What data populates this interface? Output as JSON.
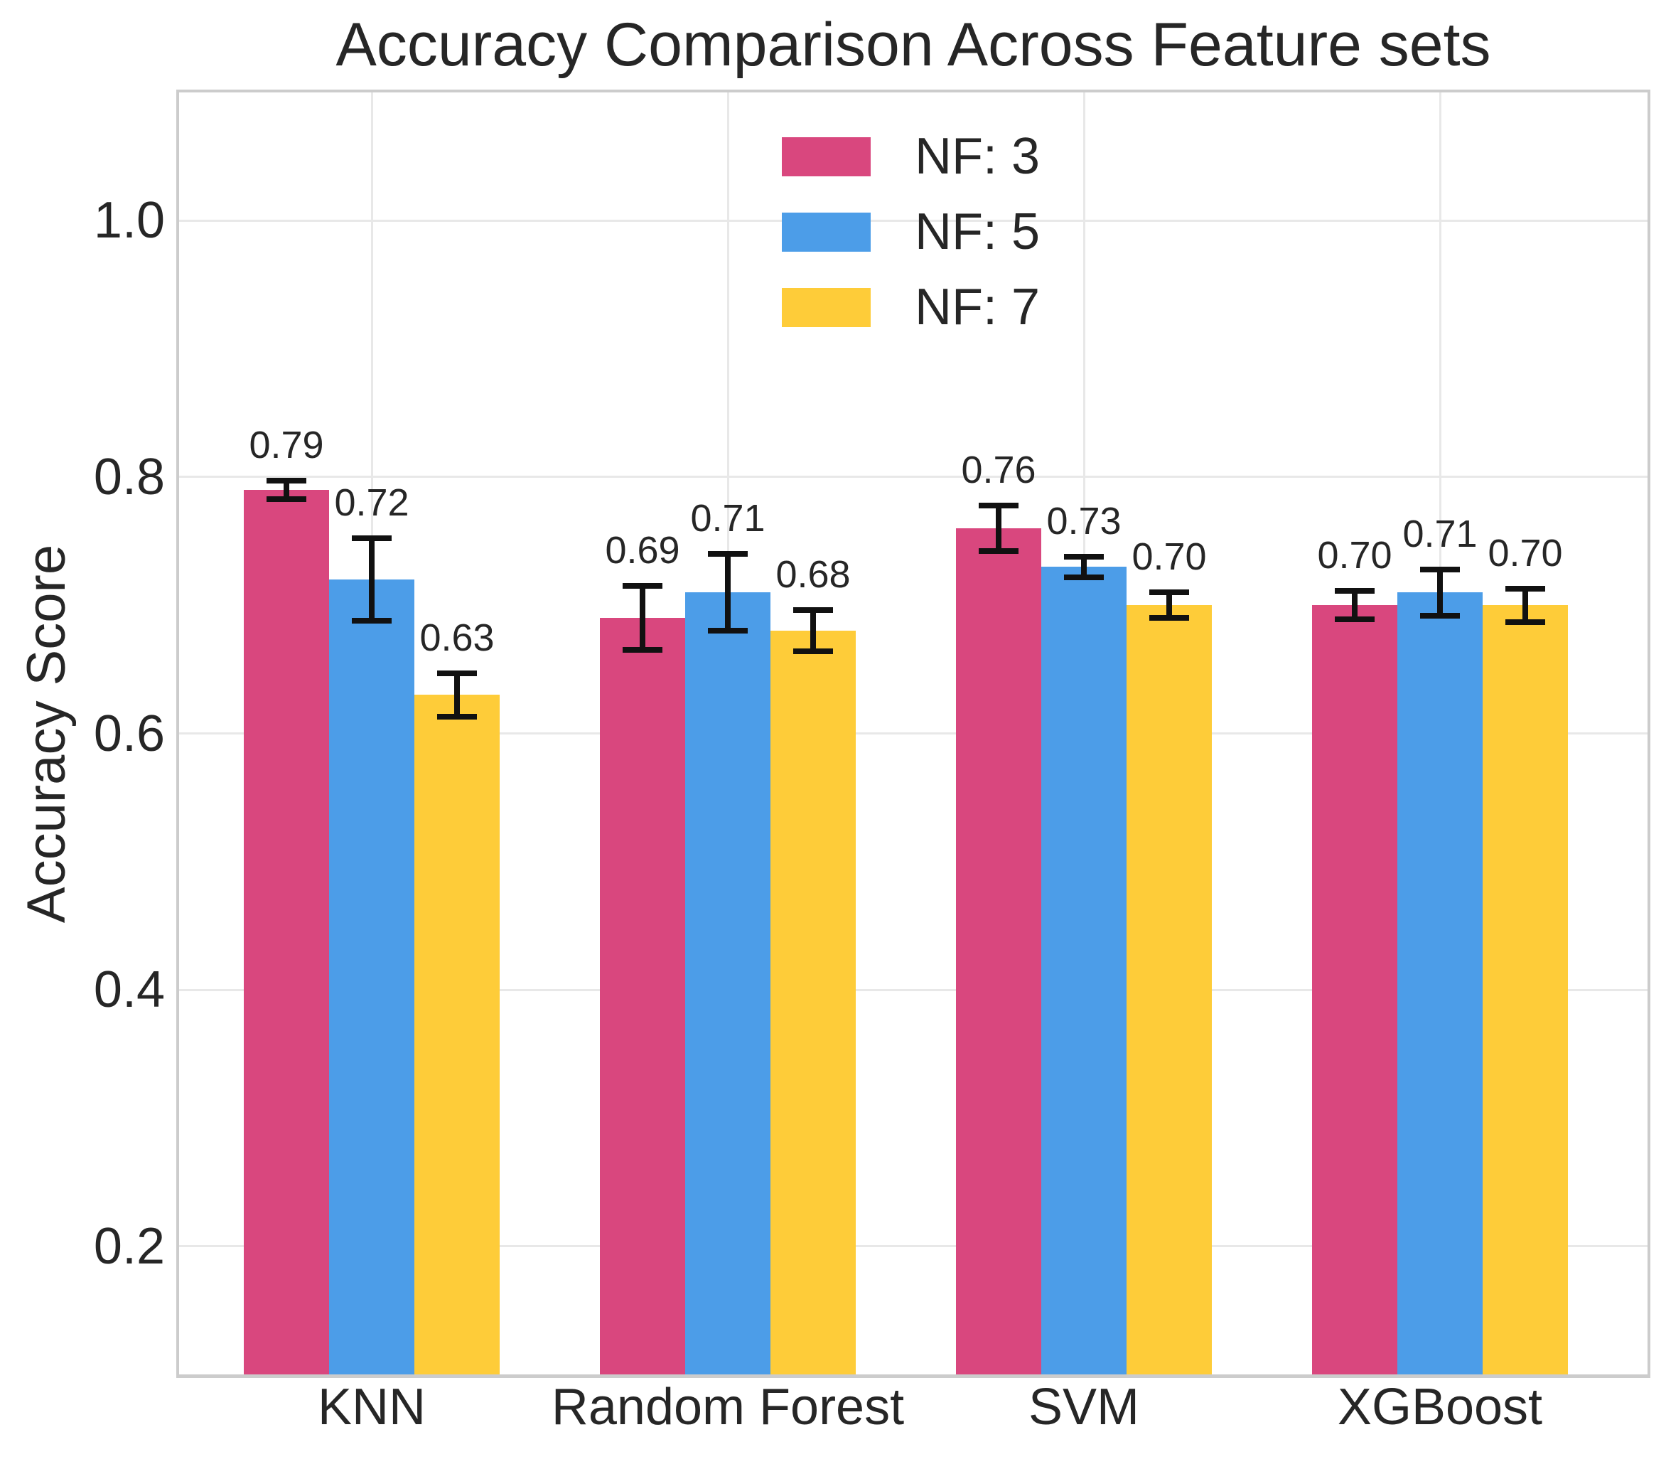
{
  "chart_data": {
    "type": "bar",
    "title": "Accuracy Comparison Across Feature sets",
    "xlabel": "",
    "ylabel": "Accuracy Score",
    "categories": [
      "KNN",
      "Random Forest",
      "SVM",
      "XGBoost"
    ],
    "series": [
      {
        "name": "NF: 3",
        "color": "#D9477E",
        "values": [
          0.79,
          0.69,
          0.76,
          0.7
        ],
        "errors": [
          0.007,
          0.025,
          0.018,
          0.011
        ],
        "labels": [
          "0.79",
          "0.69",
          "0.76",
          "0.70"
        ]
      },
      {
        "name": "NF: 5",
        "color": "#4C9DE8",
        "values": [
          0.72,
          0.71,
          0.73,
          0.71
        ],
        "errors": [
          0.032,
          0.03,
          0.008,
          0.018
        ],
        "labels": [
          "0.72",
          "0.71",
          "0.73",
          "0.71"
        ]
      },
      {
        "name": "NF: 7",
        "color": "#FECC39",
        "values": [
          0.63,
          0.68,
          0.7,
          0.7
        ],
        "errors": [
          0.017,
          0.016,
          0.01,
          0.013
        ],
        "labels": [
          "0.63",
          "0.68",
          "0.70",
          "0.70"
        ]
      }
    ],
    "yticks": {
      "values": [
        0.2,
        0.4,
        0.6,
        0.8,
        1.0
      ],
      "labels": [
        "0.2",
        "0.4",
        "0.6",
        "0.8",
        "1.0"
      ]
    },
    "ylim": [
      0.1,
      1.1
    ],
    "grid": true,
    "error_bar_color": "#111111",
    "grid_color": "#e8e8e8",
    "spine_color": "#cccccc",
    "legend": {
      "position": "upper center",
      "entries": [
        "NF: 3",
        "NF: 5",
        "NF: 7"
      ]
    }
  }
}
